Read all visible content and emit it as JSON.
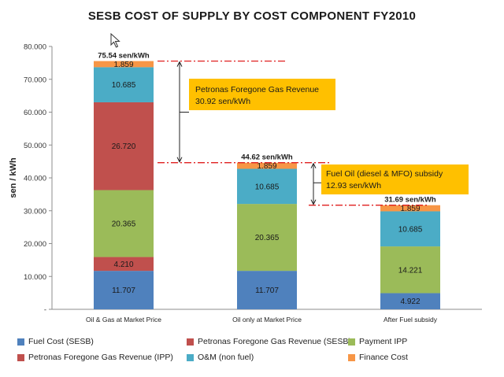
{
  "chart_data": {
    "type": "bar",
    "stacked": true,
    "title": "SESB COST OF SUPPLY BY COST COMPONENT FY2010",
    "ylabel": "sen / kWh",
    "xlabel": "",
    "ylim": [
      0,
      80
    ],
    "yticks": [
      "-",
      "10.000",
      "20.000",
      "30.000",
      "40.000",
      "50.000",
      "60.000",
      "70.000",
      "80.000"
    ],
    "grid": false,
    "legend_position": "bottom",
    "categories": [
      "Oil & Gas at Market Price",
      "Oil only at Market Price",
      "After Fuel subsidy"
    ],
    "totals": [
      "75.54 sen/kWh",
      "44.62 sen/kWh",
      "31.69 sen/kWh"
    ],
    "series": [
      {
        "name": "Fuel Cost (SESB)",
        "color": "#4f81bd",
        "values": [
          11.707,
          11.707,
          4.922
        ],
        "labels": [
          "11.707",
          "11.707",
          "4.922"
        ]
      },
      {
        "name": "Petronas Foregone Gas Revenue (IPP)",
        "color": "#c0504d",
        "values": [
          4.21,
          0,
          0
        ],
        "labels": [
          "4.210",
          "",
          ""
        ]
      },
      {
        "name": "Payment IPP",
        "color": "#9bbb59",
        "values": [
          20.365,
          20.365,
          14.221
        ],
        "labels": [
          "20.365",
          "20.365",
          "14.221"
        ]
      },
      {
        "name": "Petronas Foregone Gas Revenue (SESB)",
        "color": "#c0504d",
        "values": [
          26.72,
          0,
          0
        ],
        "labels": [
          "26.720",
          "",
          ""
        ]
      },
      {
        "name": "O&M (non fuel)",
        "color": "#4bacc6",
        "values": [
          10.685,
          10.685,
          10.685
        ],
        "labels": [
          "10.685",
          "10.685",
          "10.685"
        ]
      },
      {
        "name": "Finance Cost",
        "color": "#f79646",
        "values": [
          1.859,
          1.859,
          1.859
        ],
        "labels": [
          "1.859",
          "1.859",
          "1.859"
        ]
      }
    ],
    "legend_order": [
      0,
      3,
      2,
      1,
      4,
      5
    ],
    "annotations": [
      {
        "text": [
          "Petronas Foregone Gas Revenue",
          "30.92 sen/kWh"
        ],
        "color": "#ffc000",
        "from_value": 75.54,
        "to_value": 44.62
      },
      {
        "text": [
          "Fuel Oil (diesel & MFO) subsidy",
          "12.93 sen/kWh"
        ],
        "color": "#ffc000",
        "from_value": 44.62,
        "to_value": 31.69
      }
    ]
  }
}
